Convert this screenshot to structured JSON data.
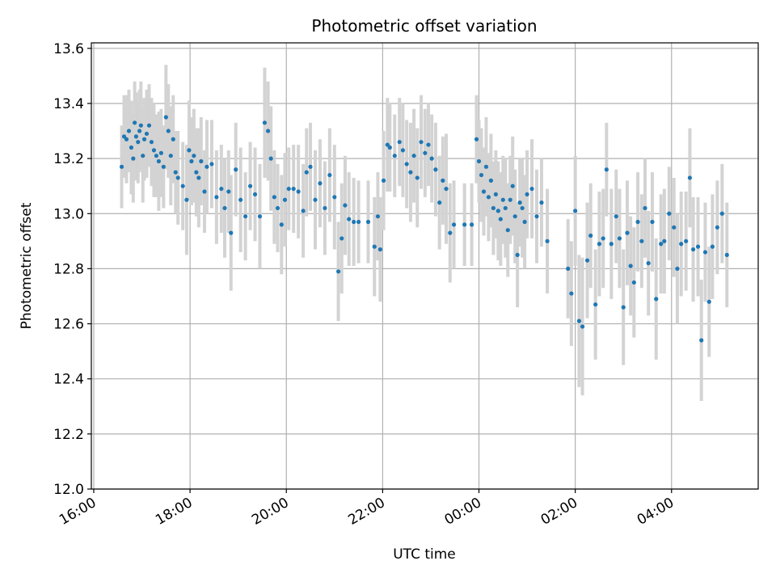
{
  "chart_data": {
    "type": "scatter",
    "title": "Photometric offset variation",
    "xlabel": "UTC time",
    "ylabel": "Photometric offset",
    "x_unit": "hours since 16:00 UTC",
    "xlim": [
      -0.05,
      13.8
    ],
    "ylim": [
      12.0,
      13.62
    ],
    "x_ticks": [
      {
        "value": 0,
        "label": "16:00"
      },
      {
        "value": 2,
        "label": "18:00"
      },
      {
        "value": 4,
        "label": "20:00"
      },
      {
        "value": 6,
        "label": "22:00"
      },
      {
        "value": 8,
        "label": "00:00"
      },
      {
        "value": 10,
        "label": "02:00"
      },
      {
        "value": 12,
        "label": "04:00"
      }
    ],
    "y_ticks": [
      {
        "value": 12.0,
        "label": "12.0"
      },
      {
        "value": 12.2,
        "label": "12.2"
      },
      {
        "value": 12.4,
        "label": "12.4"
      },
      {
        "value": 12.6,
        "label": "12.6"
      },
      {
        "value": 12.8,
        "label": "12.8"
      },
      {
        "value": 13.0,
        "label": "13.0"
      },
      {
        "value": 13.2,
        "label": "13.2"
      },
      {
        "value": 13.4,
        "label": "13.4"
      },
      {
        "value": 13.6,
        "label": "13.6"
      }
    ],
    "grid": true,
    "marker_color": "#1f77b4",
    "errorbar_color": "#d3d3d3",
    "series": [
      {
        "points": [
          [
            0.58,
            13.17,
            0.15
          ],
          [
            0.63,
            13.28,
            0.15
          ],
          [
            0.68,
            13.27,
            0.16
          ],
          [
            0.73,
            13.3,
            0.15
          ],
          [
            0.78,
            13.24,
            0.17
          ],
          [
            0.82,
            13.2,
            0.16
          ],
          [
            0.85,
            13.33,
            0.15
          ],
          [
            0.88,
            13.28,
            0.16
          ],
          [
            0.92,
            13.26,
            0.15
          ],
          [
            0.95,
            13.3,
            0.15
          ],
          [
            0.98,
            13.32,
            0.16
          ],
          [
            1.02,
            13.21,
            0.17
          ],
          [
            1.05,
            13.27,
            0.15
          ],
          [
            1.1,
            13.29,
            0.16
          ],
          [
            1.15,
            13.32,
            0.15
          ],
          [
            1.2,
            13.26,
            0.16
          ],
          [
            1.25,
            13.23,
            0.17
          ],
          [
            1.3,
            13.21,
            0.15
          ],
          [
            1.35,
            13.19,
            0.18
          ],
          [
            1.4,
            13.22,
            0.16
          ],
          [
            1.45,
            13.17,
            0.15
          ],
          [
            1.5,
            13.35,
            0.19
          ],
          [
            1.55,
            13.3,
            0.17
          ],
          [
            1.6,
            13.21,
            0.18
          ],
          [
            1.65,
            13.27,
            0.16
          ],
          [
            1.7,
            13.15,
            0.15
          ],
          [
            1.75,
            13.13,
            0.17
          ],
          [
            1.85,
            13.1,
            0.16
          ],
          [
            1.93,
            13.05,
            0.2
          ],
          [
            1.98,
            13.23,
            0.18
          ],
          [
            2.03,
            13.19,
            0.16
          ],
          [
            2.08,
            13.21,
            0.17
          ],
          [
            2.13,
            13.15,
            0.16
          ],
          [
            2.18,
            13.13,
            0.18
          ],
          [
            2.23,
            13.19,
            0.16
          ],
          [
            2.3,
            13.08,
            0.15
          ],
          [
            2.35,
            13.17,
            0.17
          ],
          [
            2.45,
            13.18,
            0.16
          ],
          [
            2.55,
            13.06,
            0.17
          ],
          [
            2.65,
            13.09,
            0.16
          ],
          [
            2.72,
            13.02,
            0.18
          ],
          [
            2.8,
            13.08,
            0.15
          ],
          [
            2.85,
            12.93,
            0.21
          ],
          [
            2.95,
            13.16,
            0.17
          ],
          [
            3.05,
            13.05,
            0.19
          ],
          [
            3.15,
            12.99,
            0.16
          ],
          [
            3.25,
            13.1,
            0.16
          ],
          [
            3.35,
            13.07,
            0.17
          ],
          [
            3.45,
            12.99,
            0.19
          ],
          [
            3.55,
            13.33,
            0.2
          ],
          [
            3.62,
            13.3,
            0.18
          ],
          [
            3.68,
            13.2,
            0.19
          ],
          [
            3.75,
            13.06,
            0.17
          ],
          [
            3.82,
            13.02,
            0.16
          ],
          [
            3.9,
            12.96,
            0.18
          ],
          [
            3.97,
            13.05,
            0.17
          ],
          [
            4.05,
            13.09,
            0.15
          ],
          [
            4.15,
            13.09,
            0.16
          ],
          [
            4.25,
            13.08,
            0.17
          ],
          [
            4.35,
            13.01,
            0.17
          ],
          [
            4.42,
            13.15,
            0.16
          ],
          [
            4.5,
            13.17,
            0.16
          ],
          [
            4.6,
            13.05,
            0.18
          ],
          [
            4.7,
            13.11,
            0.16
          ],
          [
            4.8,
            13.02,
            0.17
          ],
          [
            4.9,
            13.14,
            0.17
          ],
          [
            5.0,
            13.06,
            0.19
          ],
          [
            5.08,
            12.79,
            0.18
          ],
          [
            5.15,
            12.91,
            0.2
          ],
          [
            5.22,
            13.03,
            0.18
          ],
          [
            5.3,
            12.98,
            0.17
          ],
          [
            5.4,
            12.97,
            0.16
          ],
          [
            5.5,
            12.97,
            0.15
          ],
          [
            5.7,
            12.97,
            0.15
          ],
          [
            5.83,
            12.88,
            0.18
          ],
          [
            5.9,
            12.99,
            0.16
          ],
          [
            5.95,
            12.87,
            0.19
          ],
          [
            6.02,
            13.12,
            0.18
          ],
          [
            6.1,
            13.25,
            0.17
          ],
          [
            6.15,
            13.24,
            0.16
          ],
          [
            6.25,
            13.21,
            0.15
          ],
          [
            6.35,
            13.26,
            0.16
          ],
          [
            6.42,
            13.23,
            0.17
          ],
          [
            6.5,
            13.18,
            0.16
          ],
          [
            6.58,
            13.15,
            0.18
          ],
          [
            6.65,
            13.21,
            0.17
          ],
          [
            6.72,
            13.13,
            0.18
          ],
          [
            6.8,
            13.26,
            0.17
          ],
          [
            6.88,
            13.22,
            0.16
          ],
          [
            6.95,
            13.25,
            0.15
          ],
          [
            7.02,
            13.2,
            0.16
          ],
          [
            7.1,
            13.16,
            0.17
          ],
          [
            7.18,
            13.04,
            0.17
          ],
          [
            7.25,
            13.12,
            0.16
          ],
          [
            7.32,
            13.09,
            0.2
          ],
          [
            7.4,
            12.93,
            0.18
          ],
          [
            7.48,
            12.96,
            0.16
          ],
          [
            7.7,
            12.96,
            0.15
          ],
          [
            7.85,
            12.96,
            0.15
          ],
          [
            7.95,
            13.27,
            0.16
          ],
          [
            8.0,
            13.19,
            0.15
          ],
          [
            8.05,
            13.14,
            0.17
          ],
          [
            8.1,
            13.08,
            0.16
          ],
          [
            8.15,
            13.17,
            0.18
          ],
          [
            8.2,
            13.06,
            0.16
          ],
          [
            8.25,
            13.12,
            0.17
          ],
          [
            8.3,
            13.02,
            0.17
          ],
          [
            8.35,
            13.07,
            0.16
          ],
          [
            8.4,
            13.01,
            0.18
          ],
          [
            8.45,
            12.98,
            0.17
          ],
          [
            8.5,
            13.05,
            0.16
          ],
          [
            8.55,
            13.02,
            0.18
          ],
          [
            8.6,
            12.94,
            0.17
          ],
          [
            8.65,
            13.05,
            0.16
          ],
          [
            8.7,
            13.1,
            0.18
          ],
          [
            8.75,
            12.99,
            0.17
          ],
          [
            8.8,
            12.85,
            0.19
          ],
          [
            8.85,
            13.04,
            0.16
          ],
          [
            8.9,
            13.02,
            0.18
          ],
          [
            8.95,
            12.97,
            0.17
          ],
          [
            9.0,
            13.07,
            0.16
          ],
          [
            9.1,
            13.09,
            0.18
          ],
          [
            9.2,
            12.99,
            0.17
          ],
          [
            9.3,
            13.04,
            0.16
          ],
          [
            9.42,
            12.9,
            0.19
          ],
          [
            9.85,
            12.8,
            0.18
          ],
          [
            9.92,
            12.71,
            0.19
          ],
          [
            10.0,
            13.01,
            0.2
          ],
          [
            10.08,
            12.61,
            0.24
          ],
          [
            10.15,
            12.59,
            0.25
          ],
          [
            10.25,
            12.83,
            0.21
          ],
          [
            10.32,
            12.92,
            0.19
          ],
          [
            10.42,
            12.67,
            0.2
          ],
          [
            10.5,
            12.89,
            0.19
          ],
          [
            10.58,
            12.91,
            0.18
          ],
          [
            10.65,
            13.16,
            0.17
          ],
          [
            10.75,
            12.89,
            0.2
          ],
          [
            10.85,
            12.99,
            0.17
          ],
          [
            10.92,
            12.91,
            0.18
          ],
          [
            11.0,
            12.66,
            0.21
          ],
          [
            11.08,
            12.93,
            0.19
          ],
          [
            11.15,
            12.81,
            0.18
          ],
          [
            11.22,
            12.75,
            0.2
          ],
          [
            11.3,
            12.97,
            0.18
          ],
          [
            11.38,
            12.9,
            0.17
          ],
          [
            11.45,
            13.02,
            0.18
          ],
          [
            11.52,
            12.82,
            0.19
          ],
          [
            11.6,
            12.97,
            0.18
          ],
          [
            11.68,
            12.69,
            0.22
          ],
          [
            11.78,
            12.89,
            0.18
          ],
          [
            11.85,
            12.9,
            0.19
          ],
          [
            11.95,
            13.0,
            0.17
          ],
          [
            12.05,
            12.95,
            0.18
          ],
          [
            12.12,
            12.8,
            0.2
          ],
          [
            12.2,
            12.89,
            0.19
          ],
          [
            12.3,
            12.9,
            0.18
          ],
          [
            12.38,
            13.13,
            0.18
          ],
          [
            12.45,
            12.87,
            0.19
          ],
          [
            12.55,
            12.88,
            0.18
          ],
          [
            12.62,
            12.54,
            0.22
          ],
          [
            12.7,
            12.86,
            0.18
          ],
          [
            12.78,
            12.68,
            0.2
          ],
          [
            12.85,
            12.88,
            0.19
          ],
          [
            12.95,
            12.95,
            0.17
          ],
          [
            13.05,
            13.0,
            0.18
          ],
          [
            13.15,
            12.85,
            0.19
          ]
        ]
      }
    ]
  }
}
